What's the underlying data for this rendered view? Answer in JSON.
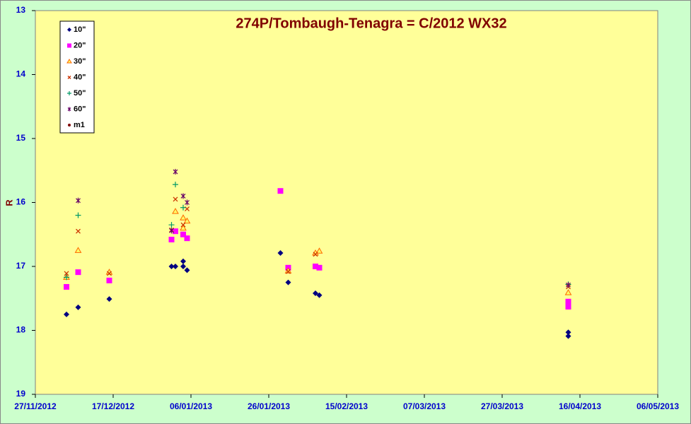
{
  "chart_data": {
    "type": "scatter",
    "title": "274P/Tombaugh-Tenagra = C/2012 WX32",
    "y_label": "R",
    "xlim": [
      "2012-11-27",
      "2013-05-06"
    ],
    "xticks": [
      {
        "value": "2012-11-27",
        "label": "27/11/2012"
      },
      {
        "value": "2012-12-17",
        "label": "17/12/2012"
      },
      {
        "value": "2013-01-06",
        "label": "06/01/2013"
      },
      {
        "value": "2013-01-26",
        "label": "26/01/2013"
      },
      {
        "value": "2013-02-15",
        "label": "15/02/2013"
      },
      {
        "value": "2013-03-07",
        "label": "07/03/2013"
      },
      {
        "value": "2013-03-27",
        "label": "27/03/2013"
      },
      {
        "value": "2013-04-16",
        "label": "16/04/2013"
      },
      {
        "value": "2013-05-06",
        "label": "06/05/2013"
      }
    ],
    "ylim": [
      19,
      13
    ],
    "yticks": [
      13,
      14,
      15,
      16,
      17,
      18,
      19
    ],
    "grid": false,
    "legend": "upper left",
    "series": [
      {
        "name": "10\"",
        "color": "#000080",
        "marker": "diamond",
        "x": [
          "2012-12-05",
          "2012-12-08",
          "2012-12-16",
          "2013-01-01",
          "2013-01-02",
          "2013-01-04",
          "2013-01-04",
          "2013-01-05",
          "2013-01-29",
          "2013-01-31",
          "2013-02-07",
          "2013-02-08",
          "2013-04-13",
          "2013-04-13"
        ],
        "values": [
          17.75,
          17.64,
          17.51,
          17.0,
          17.0,
          16.92,
          17.0,
          17.06,
          16.79,
          17.25,
          17.42,
          17.45,
          18.03,
          18.09
        ]
      },
      {
        "name": "20\"",
        "color": "#ff00ff",
        "marker": "square",
        "x": [
          "2012-12-05",
          "2012-12-08",
          "2012-12-16",
          "2013-01-01",
          "2013-01-02",
          "2013-01-04",
          "2013-01-05",
          "2013-01-29",
          "2013-01-31",
          "2013-02-07",
          "2013-02-08",
          "2013-04-13",
          "2013-04-13"
        ],
        "values": [
          17.32,
          17.09,
          17.22,
          16.58,
          16.45,
          16.5,
          16.56,
          15.82,
          17.02,
          17.0,
          17.02,
          17.63,
          17.55
        ]
      },
      {
        "name": "30\"",
        "color": "#ff6600",
        "marker": "triangle",
        "x": [
          "2012-12-05",
          "2012-12-08",
          "2012-12-16",
          "2013-01-02",
          "2013-01-04",
          "2013-01-04",
          "2013-01-05",
          "2013-01-31",
          "2013-02-07",
          "2013-02-08",
          "2013-04-13"
        ],
        "values": [
          17.17,
          16.75,
          17.09,
          16.14,
          16.24,
          16.4,
          16.29,
          17.07,
          16.79,
          16.76,
          17.41
        ]
      },
      {
        "name": "40\"",
        "color": "#cc3300",
        "marker": "x",
        "x": [
          "2012-12-05",
          "2012-12-08",
          "2012-12-16",
          "2013-01-01",
          "2013-01-02",
          "2013-01-04",
          "2013-01-05",
          "2013-01-31",
          "2013-02-07",
          "2013-04-13"
        ],
        "values": [
          17.11,
          16.45,
          17.11,
          16.43,
          15.95,
          16.35,
          16.1,
          17.08,
          16.81,
          17.32
        ]
      },
      {
        "name": "50\"",
        "color": "#009966",
        "marker": "plus",
        "x": [
          "2012-12-05",
          "2012-12-08",
          "2013-01-01",
          "2013-01-02",
          "2013-01-04",
          "2013-04-13"
        ],
        "values": [
          17.17,
          16.2,
          16.35,
          15.72,
          16.08,
          17.28
        ]
      },
      {
        "name": "60\"",
        "color": "#660066",
        "marker": "star",
        "x": [
          "2012-12-08",
          "2013-01-01",
          "2013-01-02",
          "2013-01-04",
          "2013-01-05",
          "2013-04-13"
        ],
        "values": [
          15.97,
          16.44,
          15.52,
          15.9,
          16.0,
          17.29
        ]
      },
      {
        "name": "m1",
        "color": "#800000",
        "marker": "circle",
        "x": [],
        "values": []
      }
    ]
  }
}
